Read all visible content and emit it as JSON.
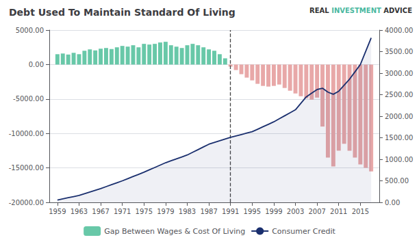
{
  "chart_data": {
    "type": "bar",
    "title": "Debt Used To Maintain Standard Of Living",
    "annotations": [
      {
        "text": "REAL ",
        "color": "#333333"
      },
      {
        "text": "INVESTMENT",
        "color": "#4ab8a0"
      },
      {
        "text": " ADVICE",
        "color": "#333333"
      }
    ],
    "x": [
      1959,
      1960,
      1961,
      1962,
      1963,
      1964,
      1965,
      1966,
      1967,
      1968,
      1969,
      1970,
      1971,
      1972,
      1973,
      1974,
      1975,
      1976,
      1977,
      1978,
      1979,
      1980,
      1981,
      1982,
      1983,
      1984,
      1985,
      1986,
      1987,
      1988,
      1989,
      1990,
      1991,
      1992,
      1993,
      1994,
      1995,
      1996,
      1997,
      1998,
      1999,
      2000,
      2001,
      2002,
      2003,
      2004,
      2005,
      2006,
      2007,
      2008,
      2009,
      2010,
      2011,
      2012,
      2013,
      2014,
      2015,
      2016,
      2017
    ],
    "xlim": [
      1957.5,
      2018.5
    ],
    "xticks": [
      1959,
      1963,
      1967,
      1971,
      1975,
      1979,
      1983,
      1987,
      1991,
      1995,
      1999,
      2003,
      2007,
      2011,
      2015
    ],
    "ylim": [
      -20000,
      5000
    ],
    "yticks": [
      {
        "value": -20000,
        "label": "-20000.00"
      },
      {
        "value": -15000,
        "label": "-15000.00"
      },
      {
        "value": -10000,
        "label": "-10000.00"
      },
      {
        "value": -5000,
        "label": "-5000.00"
      },
      {
        "value": 0,
        "label": "0.00"
      },
      {
        "value": 5000,
        "label": "5000.00"
      }
    ],
    "y2lim": [
      0,
      4000
    ],
    "y2ticks": [
      {
        "value": 0,
        "label": "0.00"
      },
      {
        "value": 500,
        "label": "500.00"
      },
      {
        "value": 1000,
        "label": "1000.00"
      },
      {
        "value": 1500,
        "label": "1500.00"
      },
      {
        "value": 2000,
        "label": "2000.00"
      },
      {
        "value": 2500,
        "label": "2500.00"
      },
      {
        "value": 3000,
        "label": "3000.00"
      },
      {
        "value": 3500,
        "label": "3500.00"
      },
      {
        "value": 4000,
        "label": "4000.00"
      }
    ],
    "reference_x": 1991,
    "grid": true,
    "legend": "bottom",
    "series": [
      {
        "name": "Gap Between Wages & Cost Of Living",
        "type": "bar",
        "color": "#68c8a8",
        "values": [
          1500,
          1600,
          1450,
          1700,
          1500,
          2000,
          2200,
          2050,
          2300,
          2400,
          2250,
          2500,
          2700,
          2600,
          2800,
          2500,
          3000,
          2900,
          3000,
          3200,
          3300,
          2800,
          2600,
          2400,
          2800,
          3000,
          2800,
          2500,
          2200,
          2000,
          1500,
          900,
          -300,
          -800,
          -1400,
          -1900,
          -2300,
          -2800,
          -3100,
          -3200,
          -3100,
          -2900,
          -3400,
          -3800,
          -4200,
          -4600,
          -4900,
          -5100,
          -4800,
          -9000,
          -13500,
          -14800,
          -12500,
          -11500,
          -12500,
          -13500,
          -14500,
          -15000,
          -15500
        ],
        "colors": [
          "#68c8a8",
          "#68c8a8",
          "#68c8a8",
          "#68c8a8",
          "#68c8a8",
          "#68c8a8",
          "#68c8a8",
          "#68c8a8",
          "#68c8a8",
          "#68c8a8",
          "#68c8a8",
          "#68c8a8",
          "#68c8a8",
          "#68c8a8",
          "#68c8a8",
          "#68c8a8",
          "#68c8a8",
          "#68c8a8",
          "#68c8a8",
          "#68c8a8",
          "#68c8a8",
          "#68c8a8",
          "#68c8a8",
          "#68c8a8",
          "#68c8a8",
          "#68c8a8",
          "#68c8a8",
          "#68c8a8",
          "#68c8a8",
          "#68c8a8",
          "#68c8a8",
          "#68c8a8",
          "#e8a8a8",
          "#e8a8a8",
          "#e8a8a8",
          "#e8a8a8",
          "#e8a8a8",
          "#e8a8a8",
          "#e8a8a8",
          "#e8a8a8",
          "#e8a8a8",
          "#e8a8a8",
          "#e8a8a8",
          "#e8a8a8",
          "#e8a8a8",
          "#e8a8a8",
          "#e8a8a8",
          "#e8a8a8",
          "#e8a8a8",
          "#e8a8a8",
          "#e8a8a8",
          "#e8a8a8",
          "#e8a8a8",
          "#e8a8a8",
          "#e8a8a8",
          "#e8a8a8",
          "#e8a8a8",
          "#e8a8a8",
          "#e8a8a8"
        ]
      },
      {
        "name": "Consumer Credit",
        "type": "line",
        "axis": "y2",
        "color": "#1a2f6e",
        "values": [
          55,
          81.25,
          107.5,
          133.75,
          160,
          200,
          240,
          280,
          320,
          365,
          410,
          455,
          500,
          550,
          600,
          650,
          700,
          755,
          810,
          865,
          920,
          965,
          1010,
          1055,
          1100,
          1162.5,
          1225,
          1287.5,
          1350,
          1390,
          1430,
          1470,
          1510,
          1542.5,
          1575,
          1607.5,
          1640,
          1697.5,
          1755,
          1812.5,
          1870,
          1940,
          2010,
          2080,
          2150,
          2300,
          2450,
          2535,
          2620,
          2650,
          2560,
          2510,
          2580,
          2720,
          2860,
          3030,
          3200,
          3510,
          3820
        ]
      }
    ]
  }
}
